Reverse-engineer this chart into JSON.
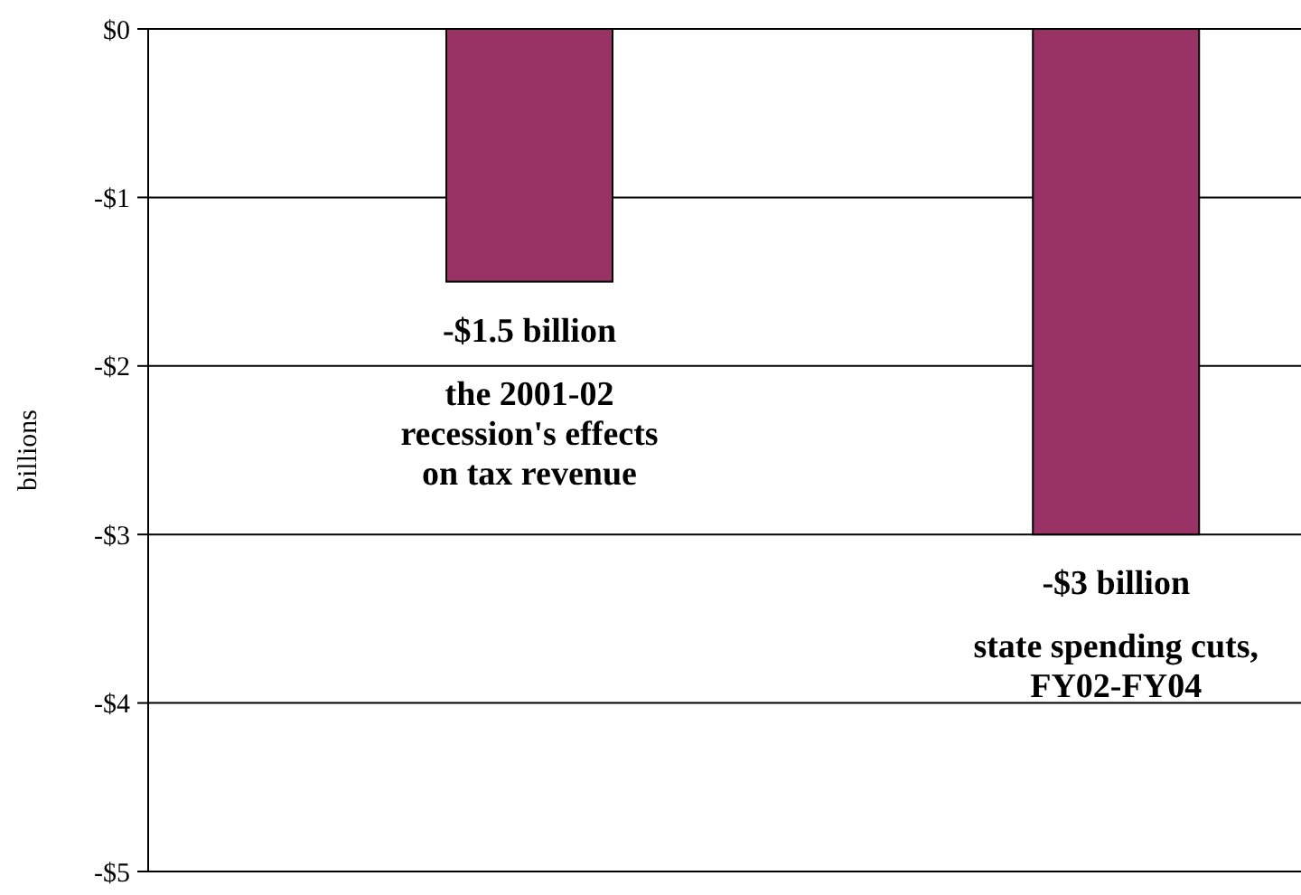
{
  "chart_data": {
    "type": "bar",
    "ylabel": "billions",
    "categories": [
      "the 2001-02 recession's effects on tax revenue",
      "state spending cuts, FY02-FY04"
    ],
    "values": [
      -1.5,
      -3
    ],
    "value_labels": [
      "-$1.5 billion",
      "-$3 billion"
    ],
    "color": "#993366",
    "ylim": [
      -5,
      0
    ],
    "yticks": [
      {
        "value": 0,
        "label": "$0"
      },
      {
        "value": -1,
        "label": "-$1"
      },
      {
        "value": -2,
        "label": "-$2"
      },
      {
        "value": -3,
        "label": "-$3"
      },
      {
        "value": -4,
        "label": "-$4"
      },
      {
        "value": -5,
        "label": "-$5"
      }
    ],
    "grid": "y",
    "tick_labels": "y"
  }
}
